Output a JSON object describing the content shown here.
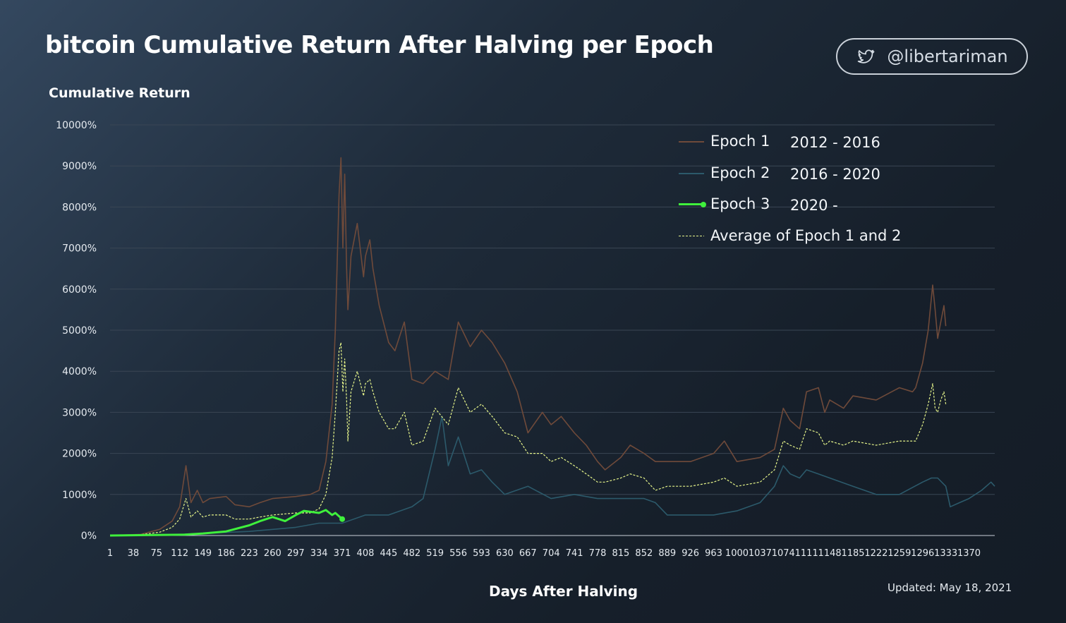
{
  "header": {
    "title": "bitcoin Cumulative Return After Halving per Epoch",
    "handle": "@libertariman",
    "handle_icon": "twitter-bird-icon"
  },
  "footer": {
    "updated": "Updated: May 18, 2021"
  },
  "colors": {
    "epoch1": "#6f4a3a",
    "epoch2": "#2c5a6b",
    "epoch3": "#3ff03c",
    "average": "#e6f58a",
    "grid": "#3a4654",
    "axis": "#c9d0d8"
  },
  "legend": [
    {
      "name": "Epoch 1",
      "years": "2012 - 2016",
      "style": "solid",
      "color": "#6f4a3a"
    },
    {
      "name": "Epoch 2",
      "years": "2016 - 2020",
      "style": "solid",
      "color": "#2c5a6b"
    },
    {
      "name": "Epoch 3",
      "years": "2020 -",
      "style": "bold",
      "color": "#3ff03c"
    },
    {
      "name": "Average of Epoch 1 and 2",
      "years": "",
      "style": "dashed",
      "color": "#e6f58a"
    }
  ],
  "chart_data": {
    "type": "line",
    "title": "bitcoin Cumulative Return After Halving per Epoch",
    "xlabel": "Days After Halving",
    "ylabel": "Cumulative Return",
    "ylim": [
      0,
      10000
    ],
    "xlim": [
      1,
      1411
    ],
    "yticks": [
      0,
      1000,
      2000,
      3000,
      4000,
      5000,
      6000,
      7000,
      8000,
      9000,
      10000
    ],
    "ytick_labels": [
      "0%",
      "1000%",
      "2000%",
      "3000%",
      "4000%",
      "5000%",
      "6000%",
      "7000%",
      "8000%",
      "9000%",
      "10000%"
    ],
    "xtick_labels": [
      "1",
      "38",
      "75",
      "112",
      "149",
      "186",
      "223",
      "260",
      "297",
      "334",
      "371",
      "408",
      "445",
      "482",
      "519",
      "556",
      "593",
      "630",
      "667",
      "704",
      "741",
      "778",
      "815",
      "852",
      "889",
      "926",
      "963",
      "1000",
      "1037",
      "1074",
      "1111",
      "1148",
      "1185",
      "1222",
      "1259",
      "1296",
      "1333",
      "1370"
    ],
    "grid": true,
    "legend_position": "top-right",
    "series": [
      {
        "name": "Epoch 1",
        "x": [
          1,
          50,
          80,
          100,
          112,
          122,
          130,
          140,
          149,
          160,
          186,
          200,
          223,
          240,
          260,
          297,
          320,
          334,
          345,
          355,
          360,
          366,
          369,
          372,
          375,
          378,
          380,
          385,
          395,
          405,
          408,
          415,
          420,
          430,
          445,
          455,
          470,
          482,
          500,
          519,
          540,
          556,
          575,
          593,
          610,
          630,
          650,
          667,
          690,
          704,
          720,
          741,
          760,
          778,
          790,
          815,
          830,
          852,
          870,
          889,
          926,
          963,
          980,
          1000,
          1037,
          1060,
          1074,
          1085,
          1100,
          1111,
          1130,
          1140,
          1148,
          1170,
          1185,
          1222,
          1259,
          1280,
          1285,
          1296,
          1305,
          1312,
          1316,
          1320,
          1325,
          1330,
          1333
        ],
        "y": [
          0,
          30,
          150,
          350,
          700,
          1700,
          800,
          1100,
          800,
          900,
          950,
          750,
          700,
          800,
          900,
          950,
          1000,
          1100,
          1800,
          3200,
          5000,
          8300,
          9200,
          7000,
          8800,
          6500,
          5500,
          6800,
          7600,
          6300,
          6800,
          7200,
          6500,
          5600,
          4700,
          4500,
          5200,
          3800,
          3700,
          4000,
          3800,
          5200,
          4600,
          5000,
          4700,
          4200,
          3500,
          2500,
          3000,
          2700,
          2900,
          2500,
          2200,
          1800,
          1600,
          1900,
          2200,
          2000,
          1800,
          1800,
          1800,
          2000,
          2300,
          1800,
          1900,
          2100,
          3100,
          2800,
          2600,
          3500,
          3600,
          3000,
          3300,
          3100,
          3400,
          3300,
          3600,
          3500,
          3600,
          4200,
          5000,
          6100,
          5500,
          4800,
          5200,
          5600,
          5100
        ]
      },
      {
        "name": "Epoch 2",
        "x": [
          1,
          100,
          149,
          223,
          297,
          334,
          371,
          408,
          445,
          482,
          500,
          519,
          530,
          540,
          556,
          575,
          593,
          610,
          630,
          667,
          704,
          741,
          778,
          815,
          852,
          870,
          889,
          926,
          963,
          1000,
          1037,
          1060,
          1074,
          1085,
          1100,
          1111,
          1130,
          1148,
          1185,
          1222,
          1259,
          1296,
          1310,
          1320,
          1333,
          1340,
          1355,
          1370,
          1390,
          1405,
          1411
        ],
        "y": [
          0,
          20,
          50,
          100,
          200,
          300,
          300,
          500,
          500,
          700,
          900,
          2100,
          2900,
          1700,
          2400,
          1500,
          1600,
          1300,
          1000,
          1200,
          900,
          1000,
          900,
          900,
          900,
          800,
          500,
          500,
          500,
          600,
          800,
          1200,
          1700,
          1500,
          1400,
          1600,
          1500,
          1400,
          1200,
          1000,
          1000,
          1300,
          1400,
          1400,
          1200,
          700,
          800,
          900,
          1100,
          1300,
          1200
        ]
      },
      {
        "name": "Epoch 3",
        "x": [
          1,
          60,
          120,
          149,
          186,
          223,
          240,
          260,
          280,
          297,
          310,
          334,
          345,
          355,
          360,
          371
        ],
        "y": [
          0,
          10,
          20,
          50,
          100,
          250,
          350,
          450,
          350,
          500,
          600,
          550,
          620,
          500,
          550,
          400
        ]
      },
      {
        "name": "Average of Epoch 1 and 2",
        "x": [
          1,
          50,
          80,
          100,
          112,
          122,
          130,
          140,
          149,
          160,
          186,
          200,
          223,
          240,
          260,
          297,
          320,
          334,
          345,
          355,
          360,
          366,
          369,
          372,
          375,
          378,
          380,
          385,
          395,
          405,
          408,
          415,
          420,
          430,
          445,
          455,
          470,
          482,
          500,
          519,
          540,
          556,
          575,
          593,
          610,
          630,
          650,
          667,
          690,
          704,
          720,
          741,
          760,
          778,
          790,
          815,
          830,
          852,
          870,
          889,
          926,
          963,
          980,
          1000,
          1037,
          1060,
          1074,
          1085,
          1100,
          1111,
          1130,
          1140,
          1148,
          1170,
          1185,
          1222,
          1259,
          1280,
          1285,
          1296,
          1305,
          1312,
          1316,
          1320,
          1325,
          1330,
          1333
        ],
        "y": [
          0,
          20,
          80,
          200,
          400,
          900,
          450,
          600,
          450,
          500,
          500,
          400,
          400,
          450,
          500,
          550,
          550,
          650,
          1000,
          1900,
          3000,
          4500,
          4700,
          3500,
          4300,
          3300,
          2300,
          3500,
          4000,
          3400,
          3700,
          3800,
          3500,
          3000,
          2600,
          2600,
          3000,
          2200,
          2300,
          3100,
          2700,
          3600,
          3000,
          3200,
          2900,
          2500,
          2400,
          2000,
          2000,
          1800,
          1900,
          1700,
          1500,
          1300,
          1300,
          1400,
          1500,
          1400,
          1100,
          1200,
          1200,
          1300,
          1400,
          1200,
          1300,
          1600,
          2300,
          2200,
          2100,
          2600,
          2500,
          2200,
          2300,
          2200,
          2300,
          2200,
          2300,
          2300,
          2300,
          2700,
          3200,
          3700,
          3100,
          3000,
          3300,
          3500,
          3200
        ]
      }
    ]
  }
}
